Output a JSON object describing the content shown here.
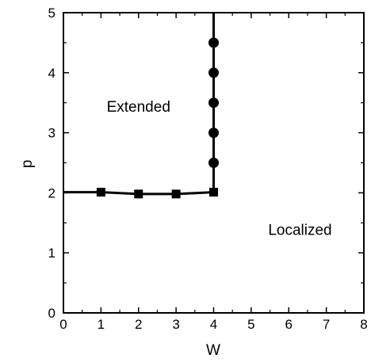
{
  "chart_data": {
    "type": "line",
    "xlabel": "W",
    "ylabel": "p",
    "xlim": [
      0,
      8
    ],
    "ylim": [
      0,
      5
    ],
    "xticks": [
      0,
      1,
      2,
      3,
      4,
      5,
      6,
      7,
      8
    ],
    "yticks": [
      0,
      1,
      2,
      3,
      4,
      5
    ],
    "grid": false,
    "series": [
      {
        "marker": "square",
        "x": [
          0,
          1,
          2,
          3,
          4
        ],
        "y": [
          2.01,
          2.01,
          1.98,
          1.98,
          2.01
        ],
        "markers_at": [
          1,
          2,
          3,
          4
        ]
      },
      {
        "marker": "circle",
        "x": [
          4,
          4,
          4,
          4,
          4,
          4
        ],
        "y": [
          2.01,
          2.5,
          3.0,
          3.5,
          4.0,
          4.5
        ],
        "extend_to_top": true,
        "markers_at": [
          2.5,
          3.0,
          3.5,
          4.0,
          4.5
        ]
      }
    ],
    "annotations": [
      {
        "text": "Extended",
        "x": 2.0,
        "y": 3.35
      },
      {
        "text": "Localized",
        "x": 6.3,
        "y": 1.3
      }
    ]
  }
}
